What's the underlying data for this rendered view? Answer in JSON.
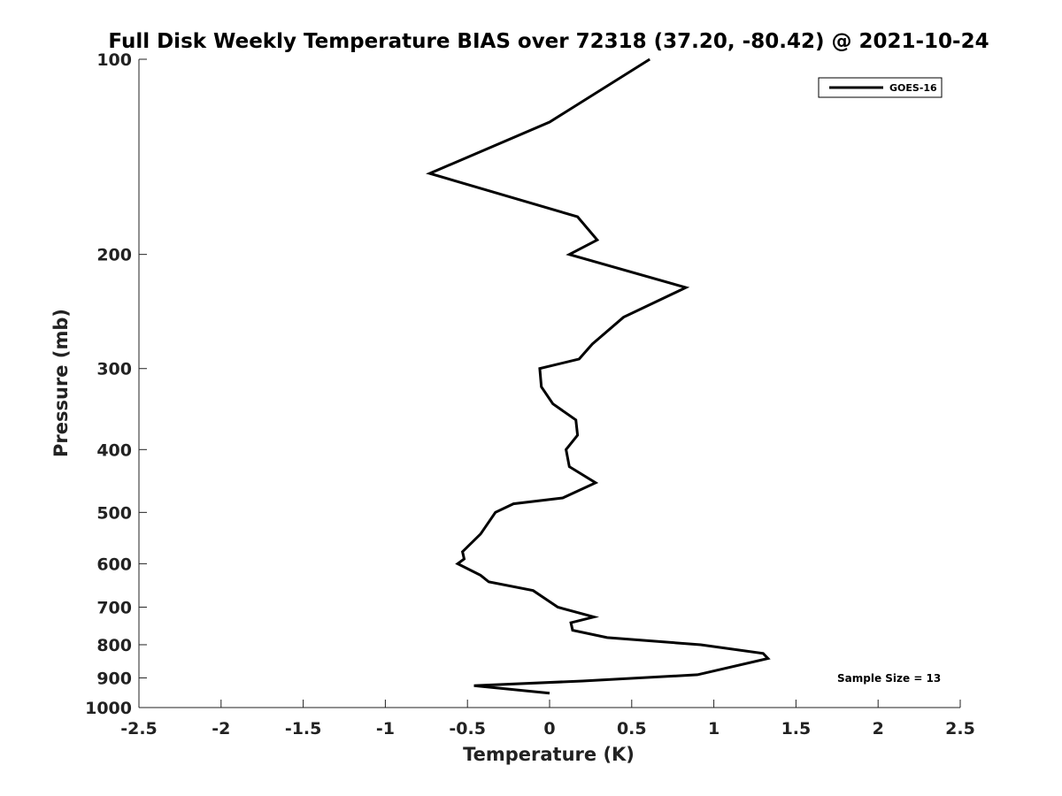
{
  "chart_data": {
    "type": "line",
    "title": "Full Disk Weekly Temperature BIAS over 72318 (37.20, -80.42) @ 2021-10-24",
    "xlabel": "Temperature (K)",
    "ylabel": "Pressure (mb)",
    "xlim": [
      -2.5,
      2.5
    ],
    "ylim": [
      100,
      1000
    ],
    "y_scale": "log",
    "y_reversed": true,
    "x_ticks": [
      -2.5,
      -2,
      -1.5,
      -1,
      -0.5,
      0,
      0.5,
      1,
      1.5,
      2,
      2.5
    ],
    "x_tick_labels": [
      "-2.5",
      "-2",
      "-1.5",
      "-1",
      "-0.5",
      "0",
      "0.5",
      "1",
      "1.5",
      "2",
      "2.5"
    ],
    "y_ticks": [
      100,
      200,
      300,
      400,
      500,
      600,
      700,
      800,
      900,
      1000
    ],
    "y_tick_labels": [
      "100",
      "200",
      "300",
      "400",
      "500",
      "600",
      "700",
      "800",
      "900",
      "1000"
    ],
    "grid": false,
    "legend_position": "top-right",
    "annotation": "Sample Size = 13",
    "series": [
      {
        "name": "GOES-16",
        "color": "#000000",
        "points": [
          {
            "x": 0.61,
            "p": 100
          },
          {
            "x": 0.0,
            "p": 125
          },
          {
            "x": -0.73,
            "p": 150
          },
          {
            "x": 0.17,
            "p": 175
          },
          {
            "x": 0.29,
            "p": 190
          },
          {
            "x": 0.12,
            "p": 200
          },
          {
            "x": 0.83,
            "p": 225
          },
          {
            "x": 0.45,
            "p": 250
          },
          {
            "x": 0.26,
            "p": 275
          },
          {
            "x": 0.18,
            "p": 290
          },
          {
            "x": -0.06,
            "p": 300
          },
          {
            "x": -0.05,
            "p": 320
          },
          {
            "x": 0.02,
            "p": 340
          },
          {
            "x": 0.16,
            "p": 360
          },
          {
            "x": 0.17,
            "p": 380
          },
          {
            "x": 0.1,
            "p": 400
          },
          {
            "x": 0.12,
            "p": 425
          },
          {
            "x": 0.28,
            "p": 450
          },
          {
            "x": 0.08,
            "p": 475
          },
          {
            "x": -0.22,
            "p": 485
          },
          {
            "x": -0.33,
            "p": 500
          },
          {
            "x": -0.42,
            "p": 540
          },
          {
            "x": -0.53,
            "p": 575
          },
          {
            "x": -0.52,
            "p": 590
          },
          {
            "x": -0.56,
            "p": 600
          },
          {
            "x": -0.42,
            "p": 625
          },
          {
            "x": -0.37,
            "p": 640
          },
          {
            "x": -0.1,
            "p": 660
          },
          {
            "x": 0.05,
            "p": 700
          },
          {
            "x": 0.27,
            "p": 725
          },
          {
            "x": 0.13,
            "p": 740
          },
          {
            "x": 0.14,
            "p": 760
          },
          {
            "x": 0.35,
            "p": 780
          },
          {
            "x": 0.92,
            "p": 800
          },
          {
            "x": 1.3,
            "p": 825
          },
          {
            "x": 1.33,
            "p": 840
          },
          {
            "x": 0.9,
            "p": 890
          },
          {
            "x": 0.2,
            "p": 910
          },
          {
            "x": -0.46,
            "p": 925
          },
          {
            "x": 0.0,
            "p": 950
          }
        ]
      }
    ]
  }
}
